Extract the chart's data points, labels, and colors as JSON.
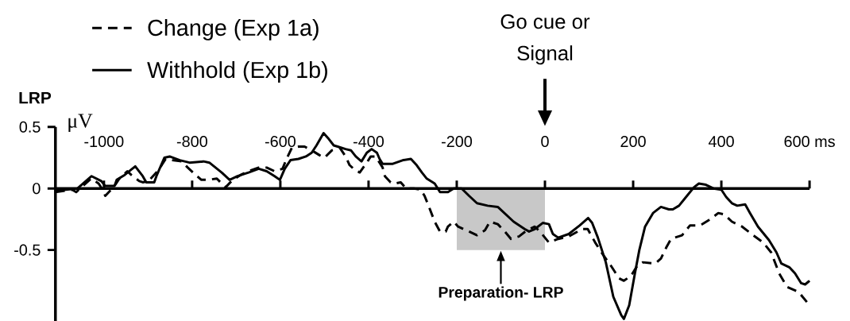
{
  "chart_data": {
    "type": "line",
    "ylabel": "LRP",
    "legend": "top left",
    "xlim": [
      -1110,
      600
    ],
    "ylim": [
      -1.08,
      0.5
    ],
    "xticks": [
      -1000,
      -800,
      -600,
      -400,
      -200,
      0,
      200,
      400,
      {
        "value": 600,
        "label": "600 ms"
      }
    ],
    "yticks": [
      -0.5,
      0,
      0.5
    ],
    "series": [
      {
        "name": "Change (Exp 1a)",
        "color": "#000000",
        "line_style": "dashed",
        "x": [
          -1110,
          -1072,
          -1063,
          -1054,
          -1029,
          -1012,
          -1003,
          -997,
          -976,
          -965,
          -947,
          -938,
          -920,
          -912,
          -899,
          -881,
          -869,
          -860,
          -845,
          -824,
          -810,
          -792,
          -779,
          -765,
          -744,
          -733,
          -724,
          -708,
          -690,
          -672,
          -649,
          -631,
          -613,
          -595,
          -586,
          -574,
          -559,
          -545,
          -529,
          -511,
          -500,
          -483,
          -465,
          -452,
          -443,
          -431,
          -420,
          -404,
          -395,
          -384,
          -368,
          -363,
          -350,
          -340,
          -327,
          -315,
          -297,
          -282,
          -273,
          -264,
          -250,
          -238,
          -225,
          -220,
          -207,
          -197,
          -172,
          -154,
          -136,
          -125,
          -107,
          -91,
          -77,
          -59,
          -41,
          -23,
          -9,
          9,
          30,
          54,
          84,
          97,
          114,
          132,
          150,
          168,
          179,
          195,
          209,
          222,
          250,
          263,
          275,
          286,
          311,
          329,
          352,
          375,
          393,
          406,
          424,
          447,
          472,
          495,
          513,
          531,
          549,
          575,
          600
        ],
        "values": [
          -0.03,
          -0.01,
          -0.03,
          0.0,
          0.08,
          0.04,
          -0.01,
          -0.06,
          0.02,
          0.08,
          0.14,
          0.11,
          0.06,
          0.05,
          0.06,
          0.13,
          0.19,
          0.24,
          0.23,
          0.22,
          0.17,
          0.11,
          0.07,
          0.07,
          0.08,
          0.04,
          0.01,
          0.07,
          0.11,
          0.14,
          0.17,
          0.17,
          0.14,
          0.16,
          0.24,
          0.33,
          0.34,
          0.34,
          0.31,
          0.27,
          0.25,
          0.31,
          0.33,
          0.26,
          0.19,
          0.15,
          0.13,
          0.21,
          0.26,
          0.26,
          0.17,
          0.1,
          0.05,
          0.04,
          0.05,
          0.0,
          0.0,
          -0.01,
          -0.06,
          -0.14,
          -0.27,
          -0.35,
          -0.35,
          -0.31,
          -0.27,
          -0.31,
          -0.35,
          -0.38,
          -0.34,
          -0.27,
          -0.29,
          -0.35,
          -0.41,
          -0.39,
          -0.34,
          -0.31,
          -0.36,
          -0.44,
          -0.41,
          -0.39,
          -0.33,
          -0.33,
          -0.44,
          -0.54,
          -0.63,
          -0.73,
          -0.75,
          -0.71,
          -0.63,
          -0.6,
          -0.61,
          -0.57,
          -0.48,
          -0.41,
          -0.38,
          -0.3,
          -0.3,
          -0.25,
          -0.2,
          -0.21,
          -0.27,
          -0.31,
          -0.38,
          -0.44,
          -0.52,
          -0.69,
          -0.8,
          -0.84,
          -0.95
        ]
      },
      {
        "name": "Withhold (Exp 1b)",
        "color": "#000000",
        "line_style": "solid",
        "x": [
          -1110,
          -1087,
          -1060,
          -1028,
          -1006,
          -997,
          -976,
          -971,
          -953,
          -929,
          -912,
          -904,
          -886,
          -881,
          -863,
          -851,
          -828,
          -806,
          -774,
          -761,
          -733,
          -715,
          -697,
          -672,
          -649,
          -631,
          -613,
          -601,
          -590,
          -577,
          -559,
          -542,
          -529,
          -518,
          -502,
          -492,
          -479,
          -470,
          -452,
          -440,
          -429,
          -416,
          -404,
          -393,
          -381,
          -375,
          -368,
          -345,
          -322,
          -304,
          -291,
          -279,
          -268,
          -250,
          -238,
          -220,
          -207,
          -189,
          -172,
          -154,
          -130,
          -107,
          -95,
          -71,
          -46,
          -36,
          -23,
          -5,
          9,
          18,
          30,
          54,
          79,
          98,
          107,
          120,
          138,
          155,
          173,
          179,
          191,
          204,
          214,
          227,
          245,
          263,
          281,
          290,
          304,
          322,
          338,
          349,
          365,
          382,
          400,
          411,
          424,
          436,
          454,
          465,
          483,
          508,
          525,
          536,
          554,
          567,
          581,
          590,
          600
        ],
        "values": [
          -0.02,
          -0.01,
          0.0,
          0.1,
          0.06,
          0.02,
          0.02,
          0.07,
          0.11,
          0.18,
          0.1,
          0.05,
          0.05,
          0.1,
          0.25,
          0.26,
          0.23,
          0.21,
          0.22,
          0.21,
          0.13,
          0.07,
          0.1,
          0.13,
          0.16,
          0.14,
          0.1,
          0.07,
          0.16,
          0.23,
          0.24,
          0.26,
          0.29,
          0.35,
          0.45,
          0.41,
          0.35,
          0.34,
          0.32,
          0.31,
          0.26,
          0.22,
          0.29,
          0.32,
          0.29,
          0.24,
          0.2,
          0.2,
          0.23,
          0.24,
          0.19,
          0.13,
          0.08,
          0.04,
          -0.03,
          -0.03,
          0.0,
          0.0,
          -0.06,
          -0.12,
          -0.14,
          -0.15,
          -0.19,
          -0.27,
          -0.33,
          -0.35,
          -0.33,
          -0.28,
          -0.29,
          -0.37,
          -0.4,
          -0.37,
          -0.3,
          -0.24,
          -0.28,
          -0.4,
          -0.6,
          -0.88,
          -1.03,
          -1.06,
          -0.95,
          -0.69,
          -0.5,
          -0.31,
          -0.2,
          -0.15,
          -0.17,
          -0.17,
          -0.14,
          -0.06,
          0.01,
          0.04,
          0.03,
          0.0,
          -0.01,
          -0.07,
          -0.12,
          -0.14,
          -0.13,
          -0.2,
          -0.31,
          -0.42,
          -0.52,
          -0.61,
          -0.64,
          -0.69,
          -0.77,
          -0.78,
          -0.75
        ]
      }
    ],
    "bands": [
      {
        "axis": "x",
        "from": -200,
        "to": 0,
        "label": "Preparation- LRP",
        "color": "#c8c8c8"
      }
    ],
    "annotations": [
      "μV",
      "Go cue or Signal"
    ]
  }
}
